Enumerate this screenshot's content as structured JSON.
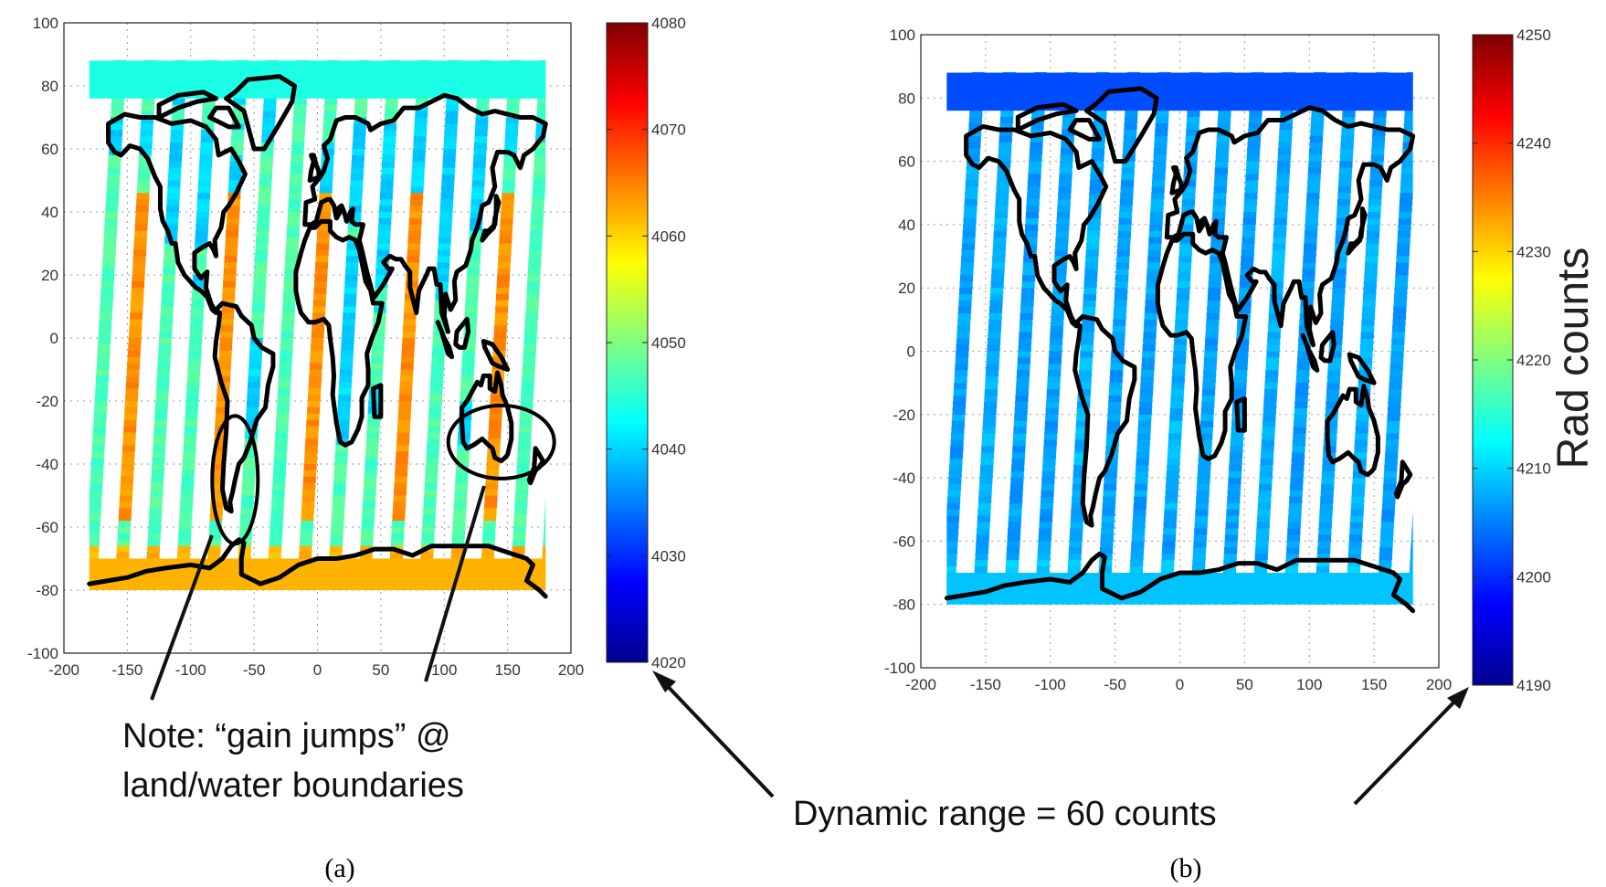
{
  "chart_data": [
    {
      "type": "heatmap",
      "panel_label": "(a)",
      "xlim": [
        -200,
        200
      ],
      "ylim": [
        -100,
        100
      ],
      "xticks": [
        -200,
        -150,
        -100,
        -50,
        0,
        50,
        100,
        150,
        200
      ],
      "yticks": [
        100,
        80,
        60,
        40,
        20,
        0,
        -20,
        -40,
        -60,
        -80,
        -100
      ],
      "colorbar": {
        "min": 4020,
        "max": 4080,
        "ticks": [
          4080,
          4070,
          4060,
          4050,
          4040,
          4030,
          4020
        ],
        "label": "",
        "colormap": "jet"
      },
      "data_extent": {
        "lon": [
          -180,
          180
        ],
        "lat": [
          -80,
          88
        ]
      },
      "swaths": {
        "count": 15,
        "width_deg_lon": 10,
        "orientation": "descending, tilted"
      },
      "base_value": 4047,
      "land_offset": -7,
      "high_lat_value": 4044,
      "antarctica_value": 4062,
      "mid_strip_value": 4064,
      "grid": true,
      "annotations": [
        {
          "type": "ellipse",
          "lon": -65,
          "lat": -45
        },
        {
          "type": "ellipse",
          "lon": 145,
          "lat": -33
        }
      ]
    },
    {
      "type": "heatmap",
      "panel_label": "(b)",
      "xlim": [
        -200,
        200
      ],
      "ylim": [
        -100,
        100
      ],
      "xticks": [
        -200,
        -150,
        -100,
        -50,
        0,
        50,
        100,
        150,
        200
      ],
      "yticks": [
        100,
        80,
        60,
        40,
        20,
        0,
        -20,
        -40,
        -60,
        -80,
        -100
      ],
      "colorbar": {
        "min": 4190,
        "max": 4250,
        "ticks": [
          4250,
          4240,
          4230,
          4220,
          4210,
          4200,
          4190
        ],
        "label": "Rad  counts",
        "colormap": "jet"
      },
      "data_extent": {
        "lon": [
          -180,
          180
        ],
        "lat": [
          -80,
          88
        ]
      },
      "swaths": {
        "count": 15,
        "width_deg_lon": 10,
        "orientation": "descending, tilted"
      },
      "base_value": 4207,
      "land_offset": 0,
      "high_lat_value": 4202,
      "antarctica_value": 4209,
      "mid_strip_value": 4208,
      "grid": true,
      "annotations": []
    }
  ],
  "annotations": {
    "note_line1": "Note: “gain jumps” @",
    "note_line2": "land/water boundaries",
    "dynamic_range": "Dynamic range = 60 counts"
  }
}
